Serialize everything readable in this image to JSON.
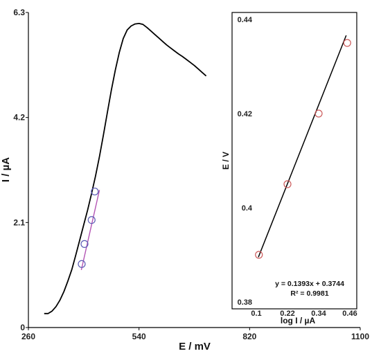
{
  "chart_data": [
    {
      "type": "line",
      "xlabel": "E / mV",
      "ylabel": "I / µA",
      "xlim": [
        260,
        1100
      ],
      "ylim": [
        0,
        6.3
      ],
      "xticks": [
        "260",
        "540",
        "820",
        "1100"
      ],
      "yticks": [
        "0",
        "2.1",
        "4.2",
        "6.3"
      ],
      "grid": false,
      "series": [
        {
          "color": "#000000",
          "x": [
            300,
            310,
            320,
            330,
            340,
            350,
            360,
            370,
            380,
            390,
            400,
            410,
            420,
            430,
            440,
            450,
            460,
            470,
            480,
            490,
            500,
            510,
            520,
            530,
            540,
            550,
            560,
            570,
            580,
            590,
            600,
            610,
            620,
            630,
            640,
            650,
            660,
            670,
            680,
            690,
            700,
            710
          ],
          "y": [
            0.28,
            0.28,
            0.33,
            0.42,
            0.55,
            0.72,
            0.93,
            1.16,
            1.45,
            1.75,
            2.05,
            2.35,
            2.68,
            3.03,
            3.42,
            3.85,
            4.3,
            4.75,
            5.15,
            5.5,
            5.78,
            5.95,
            6.03,
            6.07,
            6.08,
            6.06,
            6.0,
            5.93,
            5.86,
            5.79,
            5.72,
            5.65,
            5.59,
            5.53,
            5.47,
            5.42,
            5.36,
            5.3,
            5.24,
            5.17,
            5.1,
            5.03
          ]
        },
        {
          "color": "#b455b4",
          "x": [
            394,
            440
          ],
          "y": [
            1.15,
            2.75
          ]
        }
      ],
      "markers": {
        "color": "#5a5ab4",
        "x": [
          395,
          402,
          420,
          428
        ],
        "y": [
          1.27,
          1.67,
          2.15,
          2.72
        ]
      }
    },
    {
      "type": "scatter",
      "xlabel": "log I / µA",
      "ylabel": "E / V",
      "xlim": [
        0.1,
        0.46
      ],
      "ylim": [
        0.38,
        0.44
      ],
      "xticks": [
        "0.1",
        "0.22",
        "0.34",
        "0.46"
      ],
      "yticks": [
        "0.38",
        "0.4",
        "0.42",
        "0.44"
      ],
      "points": {
        "color": "#cc5a5a",
        "x": [
          0.11,
          0.22,
          0.34,
          0.45
        ],
        "y": [
          0.39,
          0.405,
          0.42,
          0.435
        ]
      },
      "fit": {
        "x": [
          0.108,
          0.446
        ],
        "y": [
          0.3895,
          0.4366
        ]
      },
      "annotations": [
        "y = 0.1393x + 0.3744",
        "R² = 0.9981"
      ]
    }
  ]
}
